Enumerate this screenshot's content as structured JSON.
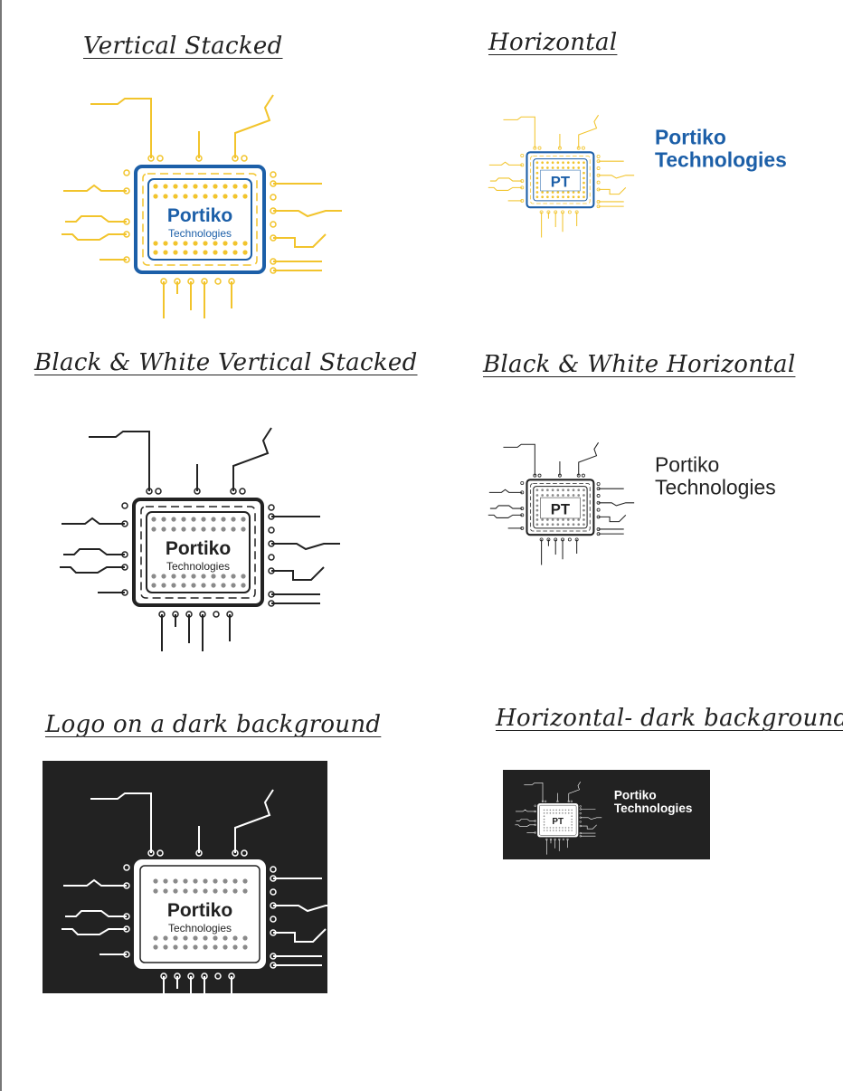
{
  "headings": {
    "vertical": "Vertical Stacked",
    "horizontal": "Horizontal",
    "bw_vertical": "Black & White Vertical Stacked",
    "bw_horizontal": "Black & White Horizontal",
    "dark_vertical": "Logo on a dark background",
    "dark_horizontal": "Horizontal- dark background"
  },
  "brand": {
    "name": "Portiko",
    "subtitle": "Technologies",
    "initials": "PT",
    "name_line1": "Portiko",
    "name_line2": "Technologies"
  },
  "colors": {
    "blue": "#1c5fa8",
    "yellow": "#f2c42c",
    "black": "#222222",
    "white": "#ffffff",
    "grey_dots": "#8a8a8a",
    "panel": "#222222"
  }
}
